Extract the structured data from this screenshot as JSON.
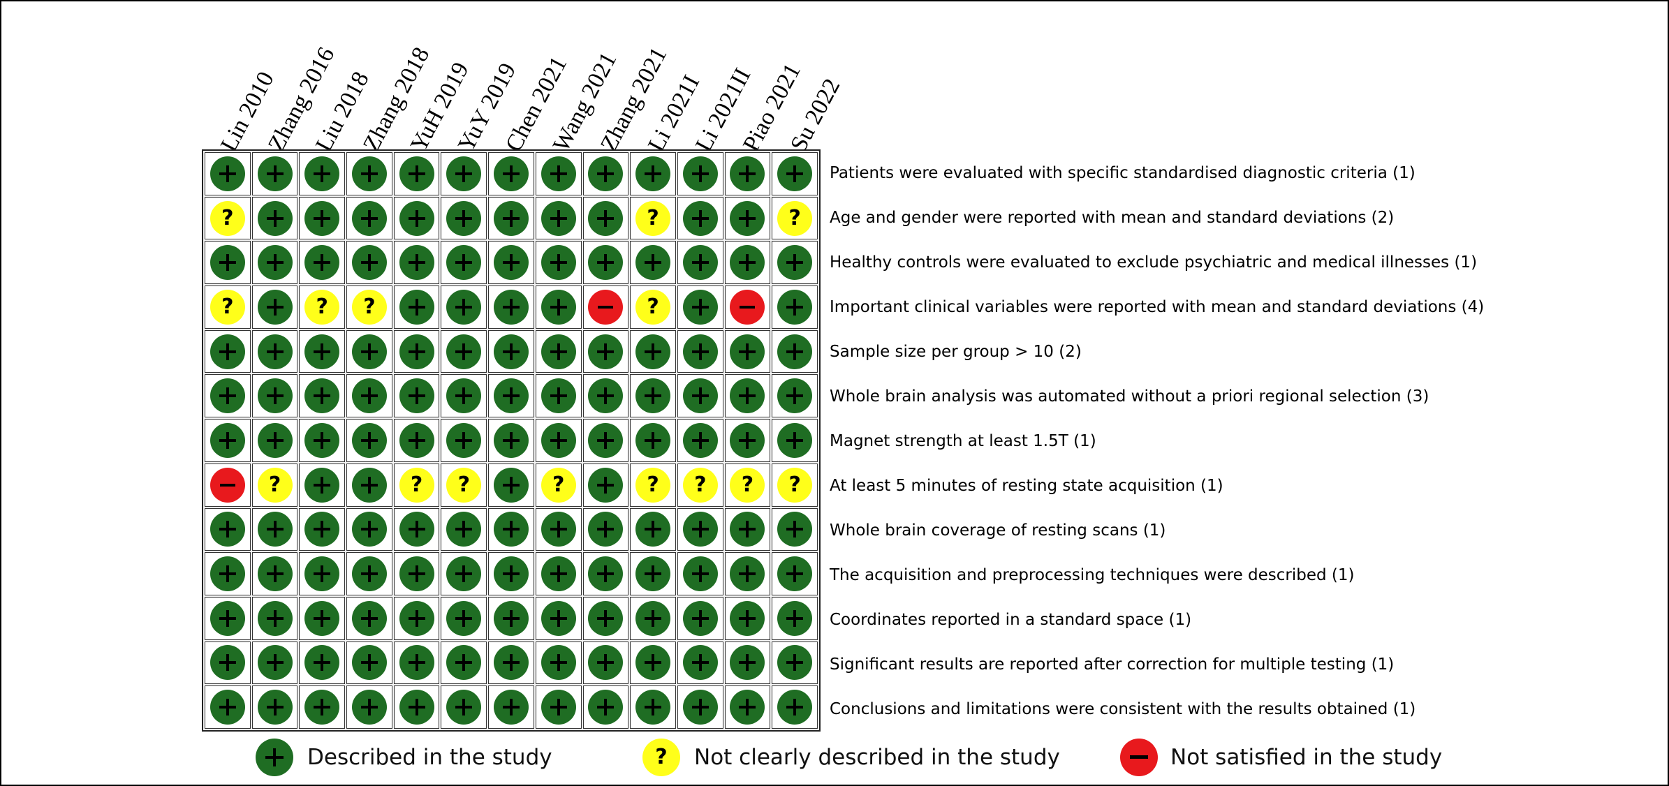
{
  "chart_data": {
    "type": "table",
    "studies": [
      "Lin 2010",
      "Zhang 2016",
      "Liu 2018",
      "Zhang 2018",
      "YuH 2019",
      "YuY 2019",
      "Chen 2021",
      "Wang 2021",
      "Zhang 2021",
      "Li 2021I",
      "Li 2021II",
      "Piao 2021",
      "Su 2022"
    ],
    "criteria": [
      "Patients were evaluated with specific standardised diagnostic criteria (1)",
      "Age and gender were reported with mean and standard deviations  (2)",
      "Healthy controls were evaluated to exclude psychiatric and medical illnesses (1)",
      "Important clinical variables  were reported with mean and standard deviations (4)",
      "Sample size per group  > 10 (2)",
      "Whole brain analysis was automated without a priori regional selection (3)",
      "Magnet strength at least 1.5T (1)",
      "At least 5 minutes of resting state acquisition    (1)",
      "Whole brain coverage of resting scans (1)",
      "The acquisition and preprocessing techniques were described (1)",
      "Coordinates reported in a standard space (1)",
      "Significant results are reported after correction for multiple testing (1)",
      "Conclusions and limitations were consistent with the results obtained (1)"
    ],
    "ratings": [
      [
        "+",
        "+",
        "+",
        "+",
        "+",
        "+",
        "+",
        "+",
        "+",
        "+",
        "+",
        "+",
        "+"
      ],
      [
        "?",
        "+",
        "+",
        "+",
        "+",
        "+",
        "+",
        "+",
        "+",
        "?",
        "+",
        "+",
        "?"
      ],
      [
        "+",
        "+",
        "+",
        "+",
        "+",
        "+",
        "+",
        "+",
        "+",
        "+",
        "+",
        "+",
        "+"
      ],
      [
        "?",
        "+",
        "?",
        "?",
        "+",
        "+",
        "+",
        "+",
        "-",
        "?",
        "+",
        "-",
        "+"
      ],
      [
        "+",
        "+",
        "+",
        "+",
        "+",
        "+",
        "+",
        "+",
        "+",
        "+",
        "+",
        "+",
        "+"
      ],
      [
        "+",
        "+",
        "+",
        "+",
        "+",
        "+",
        "+",
        "+",
        "+",
        "+",
        "+",
        "+",
        "+"
      ],
      [
        "+",
        "+",
        "+",
        "+",
        "+",
        "+",
        "+",
        "+",
        "+",
        "+",
        "+",
        "+",
        "+"
      ],
      [
        "-",
        "?",
        "+",
        "+",
        "?",
        "?",
        "+",
        "?",
        "+",
        "?",
        "?",
        "?",
        "?"
      ],
      [
        "+",
        "+",
        "+",
        "+",
        "+",
        "+",
        "+",
        "+",
        "+",
        "+",
        "+",
        "+",
        "+"
      ],
      [
        "+",
        "+",
        "+",
        "+",
        "+",
        "+",
        "+",
        "+",
        "+",
        "+",
        "+",
        "+",
        "+"
      ],
      [
        "+",
        "+",
        "+",
        "+",
        "+",
        "+",
        "+",
        "+",
        "+",
        "+",
        "+",
        "+",
        "+"
      ],
      [
        "+",
        "+",
        "+",
        "+",
        "+",
        "+",
        "+",
        "+",
        "+",
        "+",
        "+",
        "+",
        "+"
      ],
      [
        "+",
        "+",
        "+",
        "+",
        "+",
        "+",
        "+",
        "+",
        "+",
        "+",
        "+",
        "+",
        "+"
      ]
    ],
    "legend": [
      {
        "symbol": "+",
        "label": "Described in the study",
        "color": "#1f6d23"
      },
      {
        "symbol": "?",
        "label": "Not clearly described in the study",
        "color": "#ffff1a"
      },
      {
        "symbol": "-",
        "label": "Not satisfied in the study",
        "color": "#e8191d"
      }
    ]
  }
}
